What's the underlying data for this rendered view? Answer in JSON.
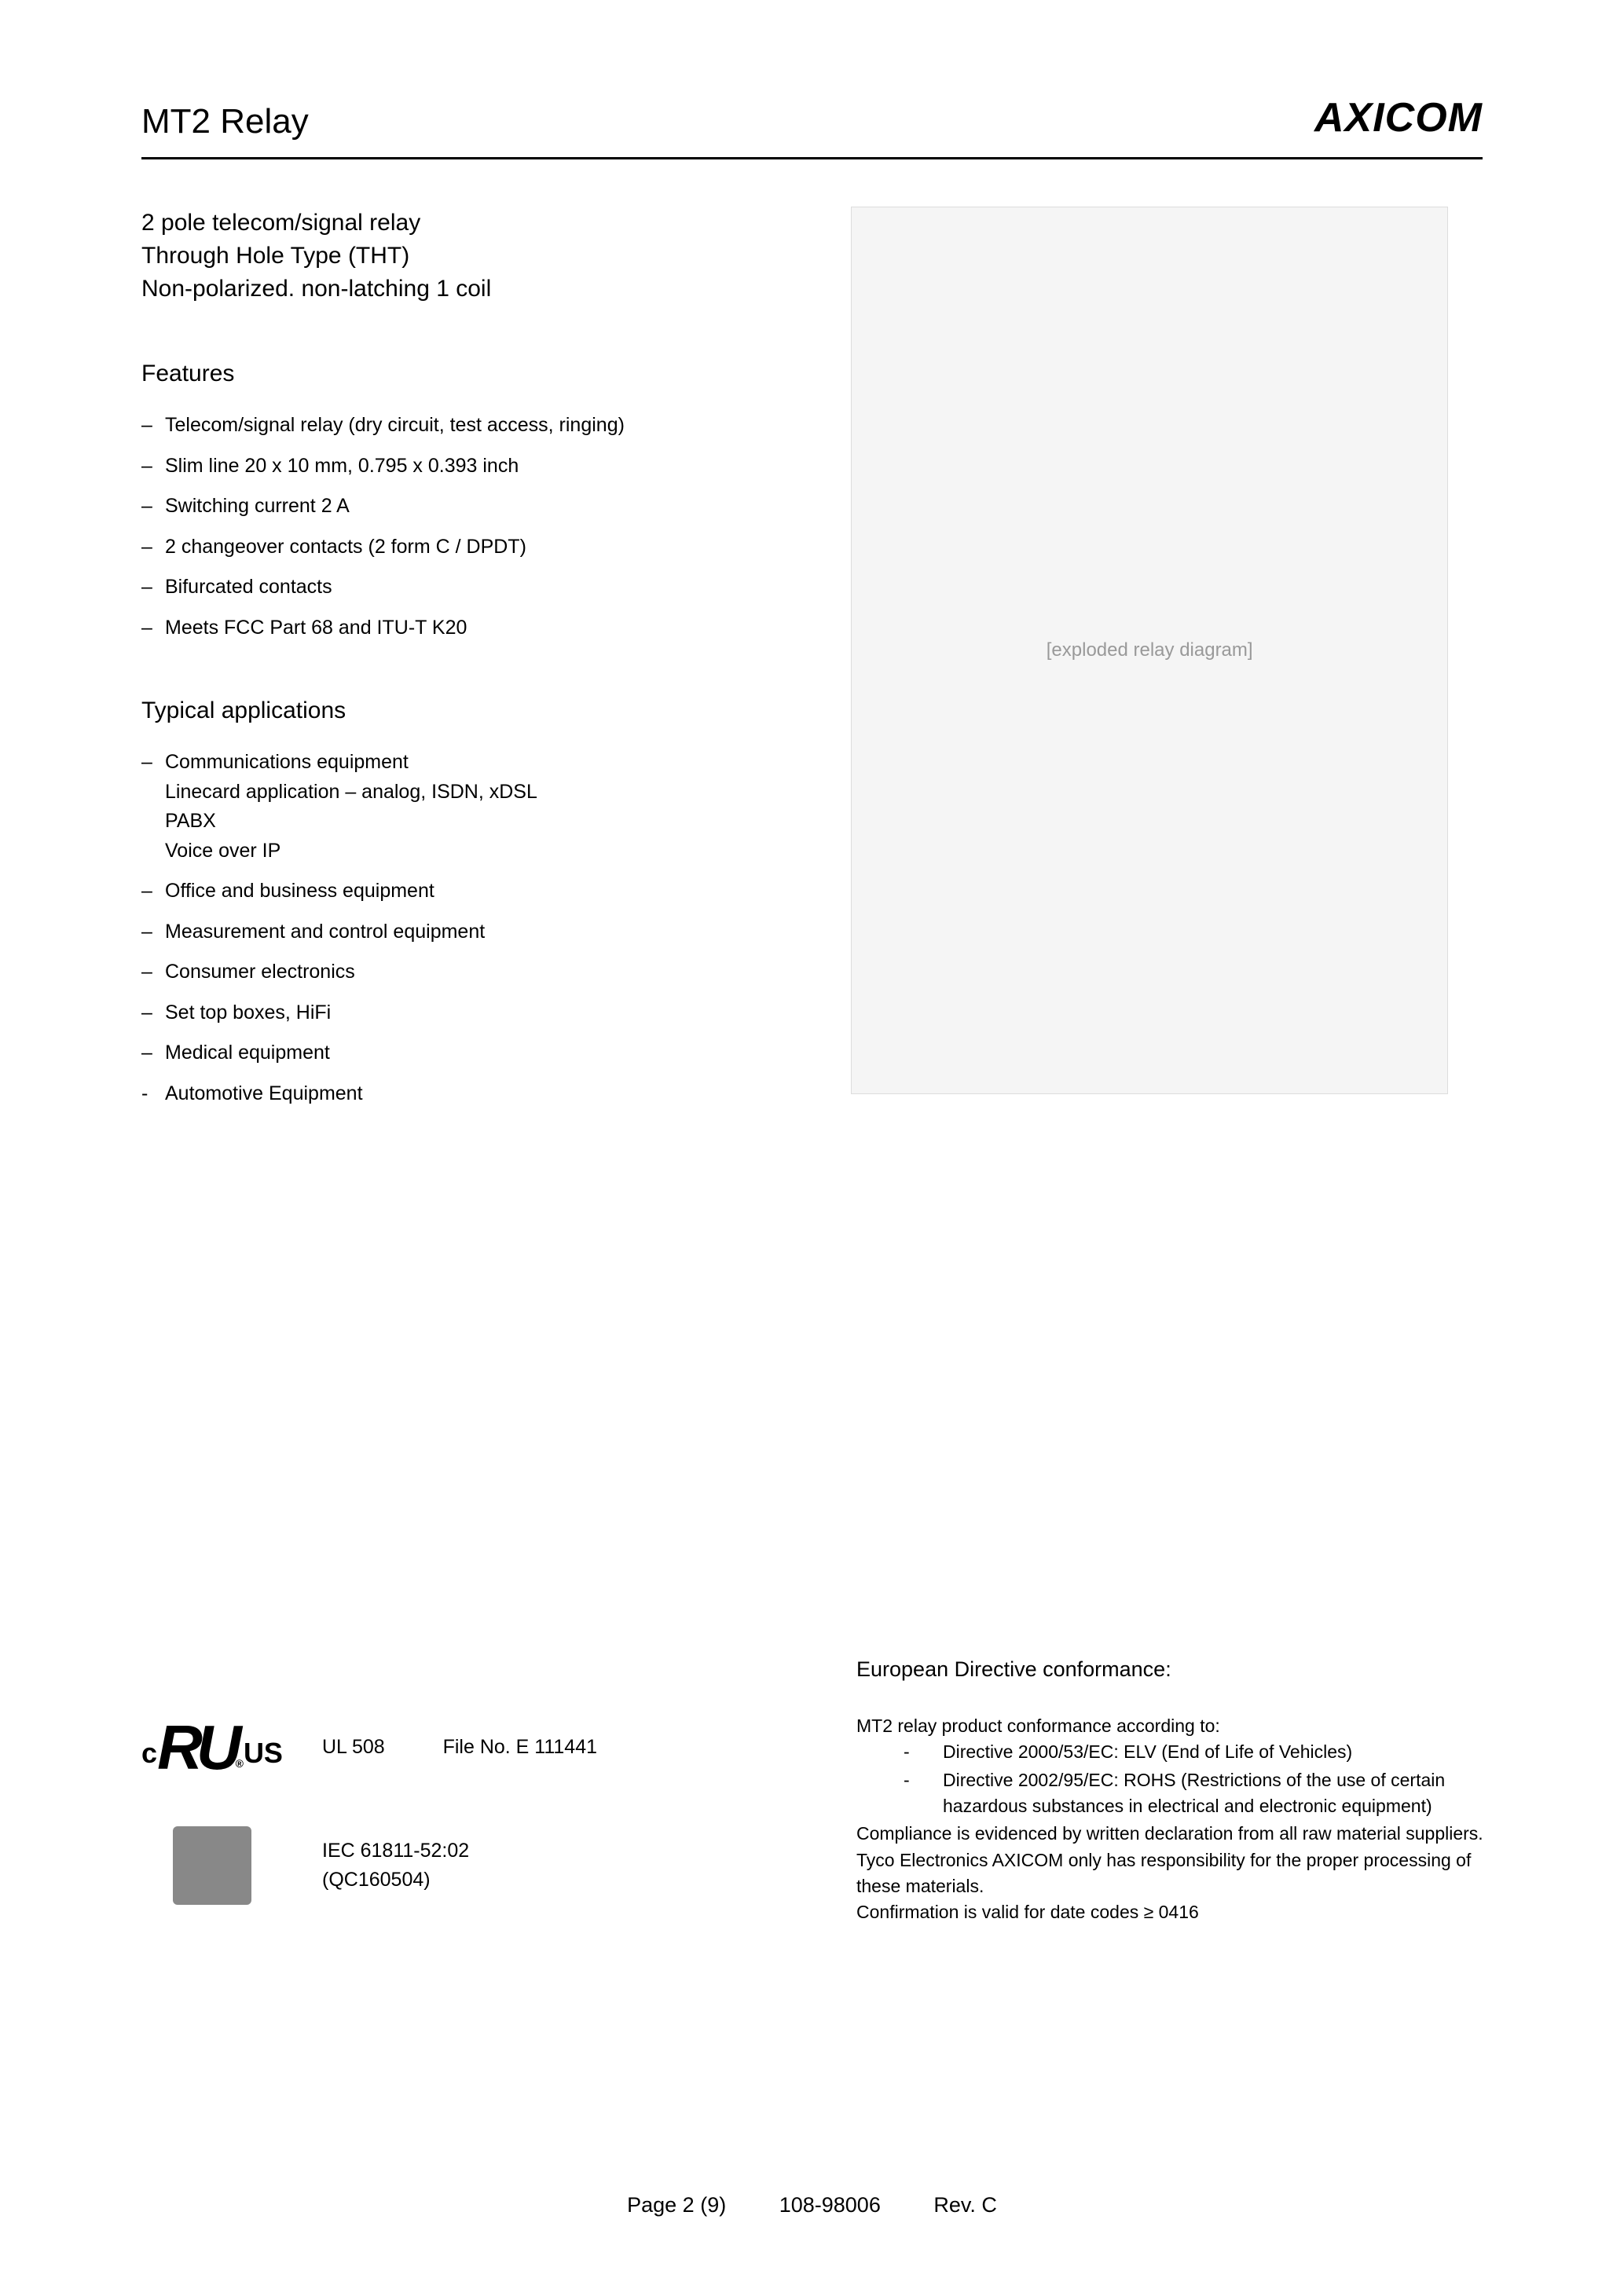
{
  "header": {
    "title": "MT2 Relay",
    "brand": "AXICOM"
  },
  "subtitle": [
    "2 pole telecom/signal relay",
    "Through Hole Type (THT)",
    "Non-polarized. non-latching 1 coil"
  ],
  "features": {
    "heading": "Features",
    "items": [
      "Telecom/signal relay (dry circuit, test access, ringing)",
      "Slim line 20 x 10 mm, 0.795 x 0.393 inch",
      "Switching current 2 A",
      "2 changeover contacts (2 form C / DPDT)",
      "Bifurcated contacts",
      "Meets FCC Part 68 and ITU-T K20"
    ]
  },
  "applications": {
    "heading": "Typical applications",
    "items": [
      {
        "main": "Communications equipment",
        "subs": [
          "Linecard application – analog, ISDN, xDSL",
          "PABX",
          "Voice over IP"
        ]
      },
      {
        "main": "Office and business equipment"
      },
      {
        "main": "Measurement and control equipment"
      },
      {
        "main": "Consumer electronics"
      },
      {
        "main": "Set top boxes, HiFi"
      },
      {
        "main": "Medical equipment"
      },
      {
        "main": "Automotive Equipment",
        "dash": true
      }
    ]
  },
  "image_placeholder": "[exploded relay diagram]",
  "certifications": {
    "ul": {
      "label1": "UL 508",
      "label2": "File No. E 111441"
    },
    "iec": {
      "line1": "IEC 61811-52:02",
      "line2": "(QC160504)"
    }
  },
  "conformance": {
    "heading": "European Directive conformance:",
    "intro": "MT2 relay product conformance according to:",
    "directives": [
      "Directive 2000/53/EC:  ELV (End of Life of Vehicles)",
      "Directive 2002/95/EC: ROHS (Restrictions of the use of certain  hazardous substances in electrical and electronic equipment)"
    ],
    "para1": "Compliance is evidenced by written declaration from all raw material suppliers.",
    "para2": "Tyco Electronics AXICOM only has responsibility for the proper processing of these materials.",
    "para3": "Confirmation is valid for date codes ≥ 0416"
  },
  "footer": {
    "page": "Page 2 (9)",
    "doc": "108-98006",
    "rev": "Rev. C"
  }
}
